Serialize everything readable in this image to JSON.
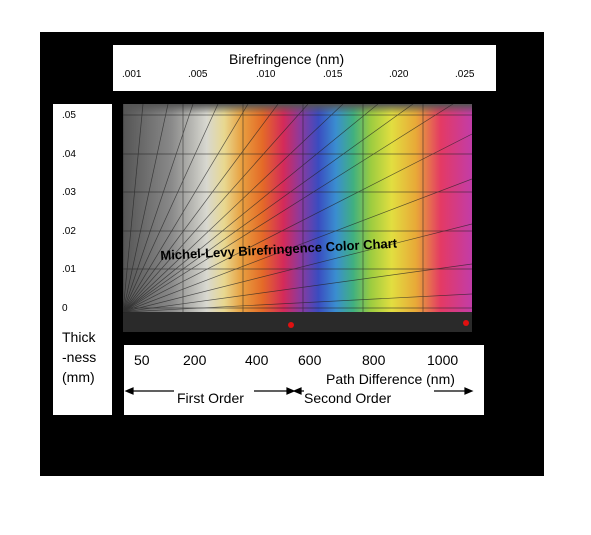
{
  "header": {
    "title": "Birefringence (nm)",
    "ticks": [
      ".001",
      ".005",
      ".010",
      ".015",
      ".020",
      ".025"
    ]
  },
  "thickness": {
    "ticks": [
      ".05",
      ".04",
      ".03",
      ".02",
      ".01",
      "0"
    ],
    "label": [
      "Thick",
      "-ness",
      "(mm)"
    ]
  },
  "chart": {
    "title": "Michel-Levy Birefringence Color Chart"
  },
  "path_difference": {
    "ticks": [
      "50",
      "200",
      "400",
      "600",
      "800",
      "1000"
    ],
    "label": "Path Difference (nm)"
  },
  "orders": [
    "First Order",
    "Second Order"
  ]
}
